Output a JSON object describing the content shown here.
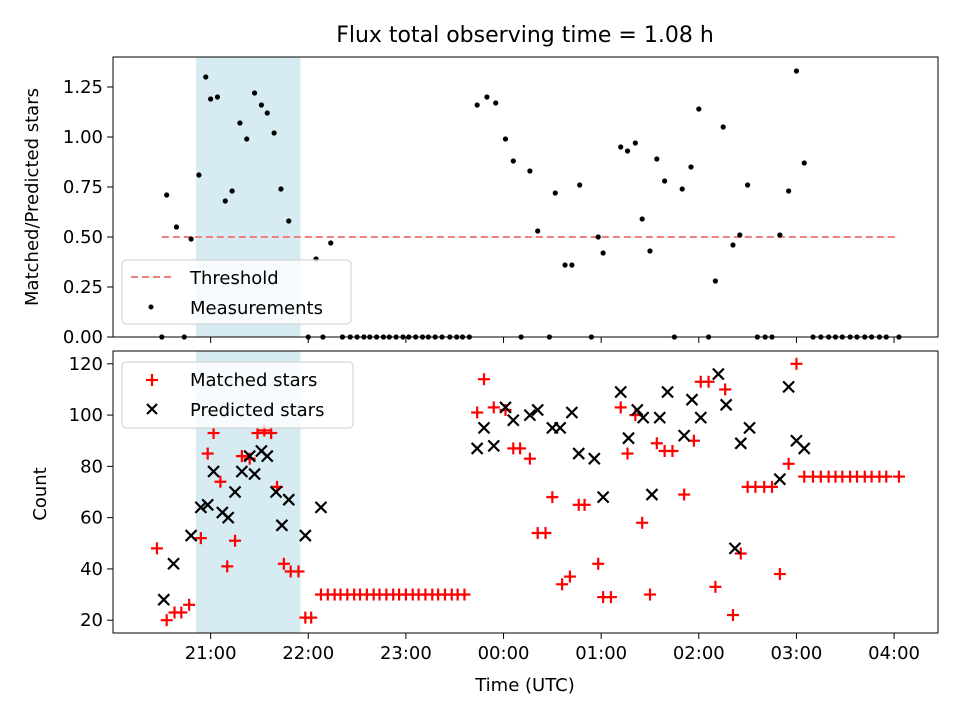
{
  "chart_data": [
    {
      "type": "scatter",
      "title": "Flux total observing time = 1.08 h",
      "xlabel": "",
      "ylabel": "Matched/Predicted stars",
      "ylim": [
        0,
        1.4
      ],
      "x_unit": "hours from 00:00 UTC (negative = previous day)",
      "yticks": [
        0.0,
        0.25,
        0.5,
        0.75,
        1.0,
        1.25
      ],
      "ytick_labels": [
        "0.00",
        "0.25",
        "0.50",
        "0.75",
        "1.00",
        "1.25"
      ],
      "grid": false,
      "legend_position": "lower-left",
      "shaded_interval": {
        "x": [
          -3.15,
          -2.08
        ],
        "color": "#add8e6"
      },
      "threshold": {
        "name": "Threshold",
        "y": 0.5,
        "x_range": [
          -3.5,
          4.05
        ],
        "color": "#f08080"
      },
      "series": [
        {
          "name": "Measurements",
          "color": "#000000",
          "marker": "dot",
          "points": [
            [
              -3.5,
              0
            ],
            [
              -3.45,
              0.71
            ],
            [
              -3.35,
              0.55
            ],
            [
              -3.27,
              0
            ],
            [
              -3.2,
              0.49
            ],
            [
              -3.12,
              0.81
            ],
            [
              -3.05,
              1.3
            ],
            [
              -3.0,
              1.19
            ],
            [
              -2.93,
              1.2
            ],
            [
              -2.85,
              0.68
            ],
            [
              -2.78,
              0.73
            ],
            [
              -2.7,
              1.07
            ],
            [
              -2.63,
              0.99
            ],
            [
              -2.55,
              1.22
            ],
            [
              -2.48,
              1.16
            ],
            [
              -2.42,
              1.12
            ],
            [
              -2.35,
              1.02
            ],
            [
              -2.28,
              0.74
            ],
            [
              -2.2,
              0.58
            ],
            [
              -2.0,
              0
            ],
            [
              -1.92,
              0.39
            ],
            [
              -1.85,
              0
            ],
            [
              -1.77,
              0.47
            ],
            [
              -1.65,
              0
            ],
            [
              -1.57,
              0
            ],
            [
              -1.5,
              0
            ],
            [
              -1.43,
              0
            ],
            [
              -1.37,
              0
            ],
            [
              -1.3,
              0
            ],
            [
              -1.23,
              0
            ],
            [
              -1.17,
              0
            ],
            [
              -1.1,
              0
            ],
            [
              -1.03,
              0
            ],
            [
              -0.97,
              0
            ],
            [
              -0.9,
              0
            ],
            [
              -0.83,
              0
            ],
            [
              -0.77,
              0
            ],
            [
              -0.7,
              0
            ],
            [
              -0.63,
              0
            ],
            [
              -0.55,
              0
            ],
            [
              -0.48,
              0
            ],
            [
              -0.42,
              0
            ],
            [
              -0.35,
              0
            ],
            [
              -0.27,
              1.16
            ],
            [
              -0.17,
              1.2
            ],
            [
              -0.08,
              1.17
            ],
            [
              0.02,
              0.99
            ],
            [
              0.1,
              0.88
            ],
            [
              0.18,
              0
            ],
            [
              0.27,
              0.83
            ],
            [
              0.35,
              0.53
            ],
            [
              0.47,
              0
            ],
            [
              0.53,
              0.72
            ],
            [
              0.63,
              0.36
            ],
            [
              0.7,
              0.36
            ],
            [
              0.78,
              0.76
            ],
            [
              0.9,
              0
            ],
            [
              0.97,
              0.5
            ],
            [
              1.02,
              0.42
            ],
            [
              1.2,
              0.95
            ],
            [
              1.27,
              0.93
            ],
            [
              1.35,
              0.97
            ],
            [
              1.42,
              0.59
            ],
            [
              1.5,
              0.43
            ],
            [
              1.57,
              0.89
            ],
            [
              1.65,
              0.78
            ],
            [
              1.75,
              0
            ],
            [
              1.83,
              0.74
            ],
            [
              1.92,
              0.85
            ],
            [
              2.0,
              1.14
            ],
            [
              2.1,
              0
            ],
            [
              2.17,
              0.28
            ],
            [
              2.25,
              1.05
            ],
            [
              2.35,
              0.46
            ],
            [
              2.42,
              0.51
            ],
            [
              2.5,
              0.76
            ],
            [
              2.6,
              0
            ],
            [
              2.68,
              0
            ],
            [
              2.75,
              0
            ],
            [
              2.83,
              0.51
            ],
            [
              2.92,
              0.73
            ],
            [
              3.0,
              1.33
            ],
            [
              3.08,
              0.87
            ],
            [
              3.17,
              0
            ],
            [
              3.25,
              0
            ],
            [
              3.33,
              0
            ],
            [
              3.4,
              0
            ],
            [
              3.47,
              0
            ],
            [
              3.55,
              0
            ],
            [
              3.62,
              0
            ],
            [
              3.7,
              0
            ],
            [
              3.77,
              0
            ],
            [
              3.85,
              0
            ],
            [
              3.92,
              0
            ],
            [
              4.05,
              0
            ]
          ]
        }
      ]
    },
    {
      "type": "scatter",
      "title": "",
      "xlabel": "Time (UTC)",
      "ylabel": "Count",
      "ylim": [
        15,
        125
      ],
      "x_unit": "hours from 00:00 UTC (negative = previous day)",
      "yticks": [
        20,
        40,
        60,
        80,
        100,
        120
      ],
      "ytick_labels": [
        "20",
        "40",
        "60",
        "80",
        "100",
        "120"
      ],
      "xlim": [
        -4.0,
        4.45
      ],
      "xticks": [
        -3,
        -2,
        -1,
        0,
        1,
        2,
        3,
        4
      ],
      "xtick_labels": [
        "21:00",
        "22:00",
        "23:00",
        "00:00",
        "01:00",
        "02:00",
        "03:00",
        "04:00"
      ],
      "grid": false,
      "legend_position": "upper-left",
      "shaded_interval": {
        "x": [
          -3.15,
          -2.08
        ],
        "color": "#add8e6"
      },
      "series": [
        {
          "name": "Matched stars",
          "color": "#ff0000",
          "marker": "plus",
          "points": [
            [
              -3.55,
              48
            ],
            [
              -3.45,
              20
            ],
            [
              -3.37,
              23
            ],
            [
              -3.3,
              23
            ],
            [
              -3.22,
              26
            ],
            [
              -3.1,
              52
            ],
            [
              -3.03,
              85
            ],
            [
              -2.97,
              93
            ],
            [
              -2.9,
              74
            ],
            [
              -2.83,
              41
            ],
            [
              -2.75,
              51
            ],
            [
              -2.68,
              84
            ],
            [
              -2.6,
              83
            ],
            [
              -2.52,
              93
            ],
            [
              -2.45,
              94
            ],
            [
              -2.38,
              93
            ],
            [
              -2.32,
              72
            ],
            [
              -2.25,
              42
            ],
            [
              -2.18,
              39
            ],
            [
              -2.1,
              39
            ],
            [
              -2.03,
              21
            ],
            [
              -1.97,
              21
            ],
            [
              -1.87,
              30
            ],
            [
              -1.8,
              30
            ],
            [
              -1.73,
              30
            ],
            [
              -1.67,
              30
            ],
            [
              -1.6,
              30
            ],
            [
              -1.53,
              30
            ],
            [
              -1.47,
              30
            ],
            [
              -1.4,
              30
            ],
            [
              -1.33,
              30
            ],
            [
              -1.27,
              30
            ],
            [
              -1.2,
              30
            ],
            [
              -1.13,
              30
            ],
            [
              -1.07,
              30
            ],
            [
              -1.0,
              30
            ],
            [
              -0.93,
              30
            ],
            [
              -0.87,
              30
            ],
            [
              -0.8,
              30
            ],
            [
              -0.73,
              30
            ],
            [
              -0.67,
              30
            ],
            [
              -0.6,
              30
            ],
            [
              -0.53,
              30
            ],
            [
              -0.47,
              30
            ],
            [
              -0.4,
              30
            ],
            [
              -0.27,
              101
            ],
            [
              -0.2,
              114
            ],
            [
              -0.1,
              103
            ],
            [
              0.02,
              102
            ],
            [
              0.1,
              87
            ],
            [
              0.17,
              87
            ],
            [
              0.27,
              83
            ],
            [
              0.35,
              54
            ],
            [
              0.43,
              54
            ],
            [
              0.5,
              68
            ],
            [
              0.6,
              34
            ],
            [
              0.68,
              37
            ],
            [
              0.77,
              65
            ],
            [
              0.83,
              65
            ],
            [
              0.97,
              42
            ],
            [
              1.02,
              29
            ],
            [
              1.1,
              29
            ],
            [
              1.2,
              103
            ],
            [
              1.27,
              85
            ],
            [
              1.35,
              100
            ],
            [
              1.42,
              58
            ],
            [
              1.5,
              30
            ],
            [
              1.57,
              89
            ],
            [
              1.65,
              86
            ],
            [
              1.73,
              86
            ],
            [
              1.85,
              69
            ],
            [
              1.95,
              90
            ],
            [
              2.02,
              113
            ],
            [
              2.1,
              113
            ],
            [
              2.17,
              33
            ],
            [
              2.27,
              110
            ],
            [
              2.35,
              22
            ],
            [
              2.43,
              46
            ],
            [
              2.5,
              72
            ],
            [
              2.58,
              72
            ],
            [
              2.67,
              72
            ],
            [
              2.75,
              72
            ],
            [
              2.83,
              38
            ],
            [
              2.92,
              81
            ],
            [
              3.0,
              120
            ],
            [
              3.08,
              76
            ],
            [
              3.17,
              76
            ],
            [
              3.25,
              76
            ],
            [
              3.33,
              76
            ],
            [
              3.4,
              76
            ],
            [
              3.47,
              76
            ],
            [
              3.55,
              76
            ],
            [
              3.62,
              76
            ],
            [
              3.7,
              76
            ],
            [
              3.77,
              76
            ],
            [
              3.85,
              76
            ],
            [
              3.92,
              76
            ],
            [
              4.05,
              76
            ]
          ]
        },
        {
          "name": "Predicted stars",
          "color": "#000000",
          "marker": "x",
          "points": [
            [
              -3.48,
              28
            ],
            [
              -3.38,
              42
            ],
            [
              -3.2,
              53
            ],
            [
              -3.1,
              64
            ],
            [
              -3.03,
              65
            ],
            [
              -2.97,
              78
            ],
            [
              -2.88,
              62
            ],
            [
              -2.82,
              60
            ],
            [
              -2.75,
              70
            ],
            [
              -2.68,
              78
            ],
            [
              -2.6,
              84
            ],
            [
              -2.55,
              77
            ],
            [
              -2.48,
              86
            ],
            [
              -2.42,
              84
            ],
            [
              -2.33,
              70
            ],
            [
              -2.27,
              57
            ],
            [
              -2.2,
              67
            ],
            [
              -2.03,
              53
            ],
            [
              -1.87,
              64
            ],
            [
              -0.27,
              87
            ],
            [
              -0.2,
              95
            ],
            [
              -0.1,
              88
            ],
            [
              0.02,
              103
            ],
            [
              0.1,
              98
            ],
            [
              0.27,
              100
            ],
            [
              0.35,
              102
            ],
            [
              0.5,
              95
            ],
            [
              0.58,
              95
            ],
            [
              0.7,
              101
            ],
            [
              0.77,
              85
            ],
            [
              0.93,
              83
            ],
            [
              1.02,
              68
            ],
            [
              1.2,
              109
            ],
            [
              1.28,
              91
            ],
            [
              1.37,
              102
            ],
            [
              1.43,
              99
            ],
            [
              1.52,
              69
            ],
            [
              1.6,
              99
            ],
            [
              1.68,
              109
            ],
            [
              1.85,
              92
            ],
            [
              1.93,
              106
            ],
            [
              2.02,
              99
            ],
            [
              2.2,
              116
            ],
            [
              2.28,
              104
            ],
            [
              2.37,
              48
            ],
            [
              2.43,
              89
            ],
            [
              2.52,
              95
            ],
            [
              2.83,
              75
            ],
            [
              2.92,
              111
            ],
            [
              3.0,
              90
            ],
            [
              3.08,
              87
            ]
          ]
        }
      ]
    }
  ]
}
